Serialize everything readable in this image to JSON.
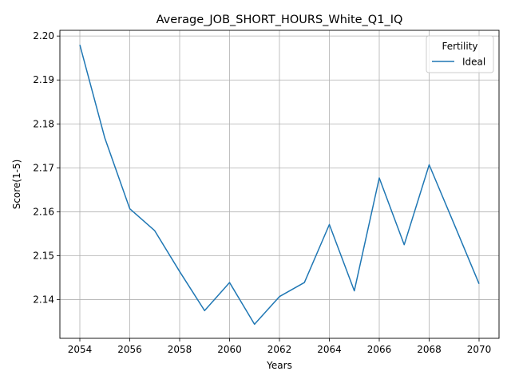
{
  "chart_data": {
    "type": "line",
    "title": "Average_JOB_SHORT_HOURS_White_Q1_IQ",
    "xlabel": "Years",
    "ylabel": "Score(1-5)",
    "x": [
      2054,
      2055,
      2056,
      2057,
      2058,
      2059,
      2060,
      2061,
      2062,
      2063,
      2064,
      2065,
      2066,
      2067,
      2068,
      2069,
      2070
    ],
    "series": [
      {
        "name": "Ideal",
        "color": "#1f77b4",
        "values": [
          2.198,
          2.1768,
          2.1607,
          2.1557,
          2.1464,
          2.1375,
          2.1439,
          2.1344,
          2.1407,
          2.1439,
          2.1571,
          2.142,
          2.1677,
          2.1525,
          2.1707,
          2.1572,
          2.1436
        ]
      }
    ],
    "xlim": [
      2053.2,
      2070.8
    ],
    "ylim": [
      2.1312,
      2.2013
    ],
    "xticks": [
      "2054",
      "2056",
      "2058",
      "2060",
      "2062",
      "2064",
      "2066",
      "2068",
      "2070"
    ],
    "yticks": [
      "2.14",
      "2.15",
      "2.16",
      "2.17",
      "2.18",
      "2.19",
      "2.20"
    ],
    "grid": true,
    "legend": {
      "title": "Fertility",
      "placement": "top-right"
    }
  }
}
